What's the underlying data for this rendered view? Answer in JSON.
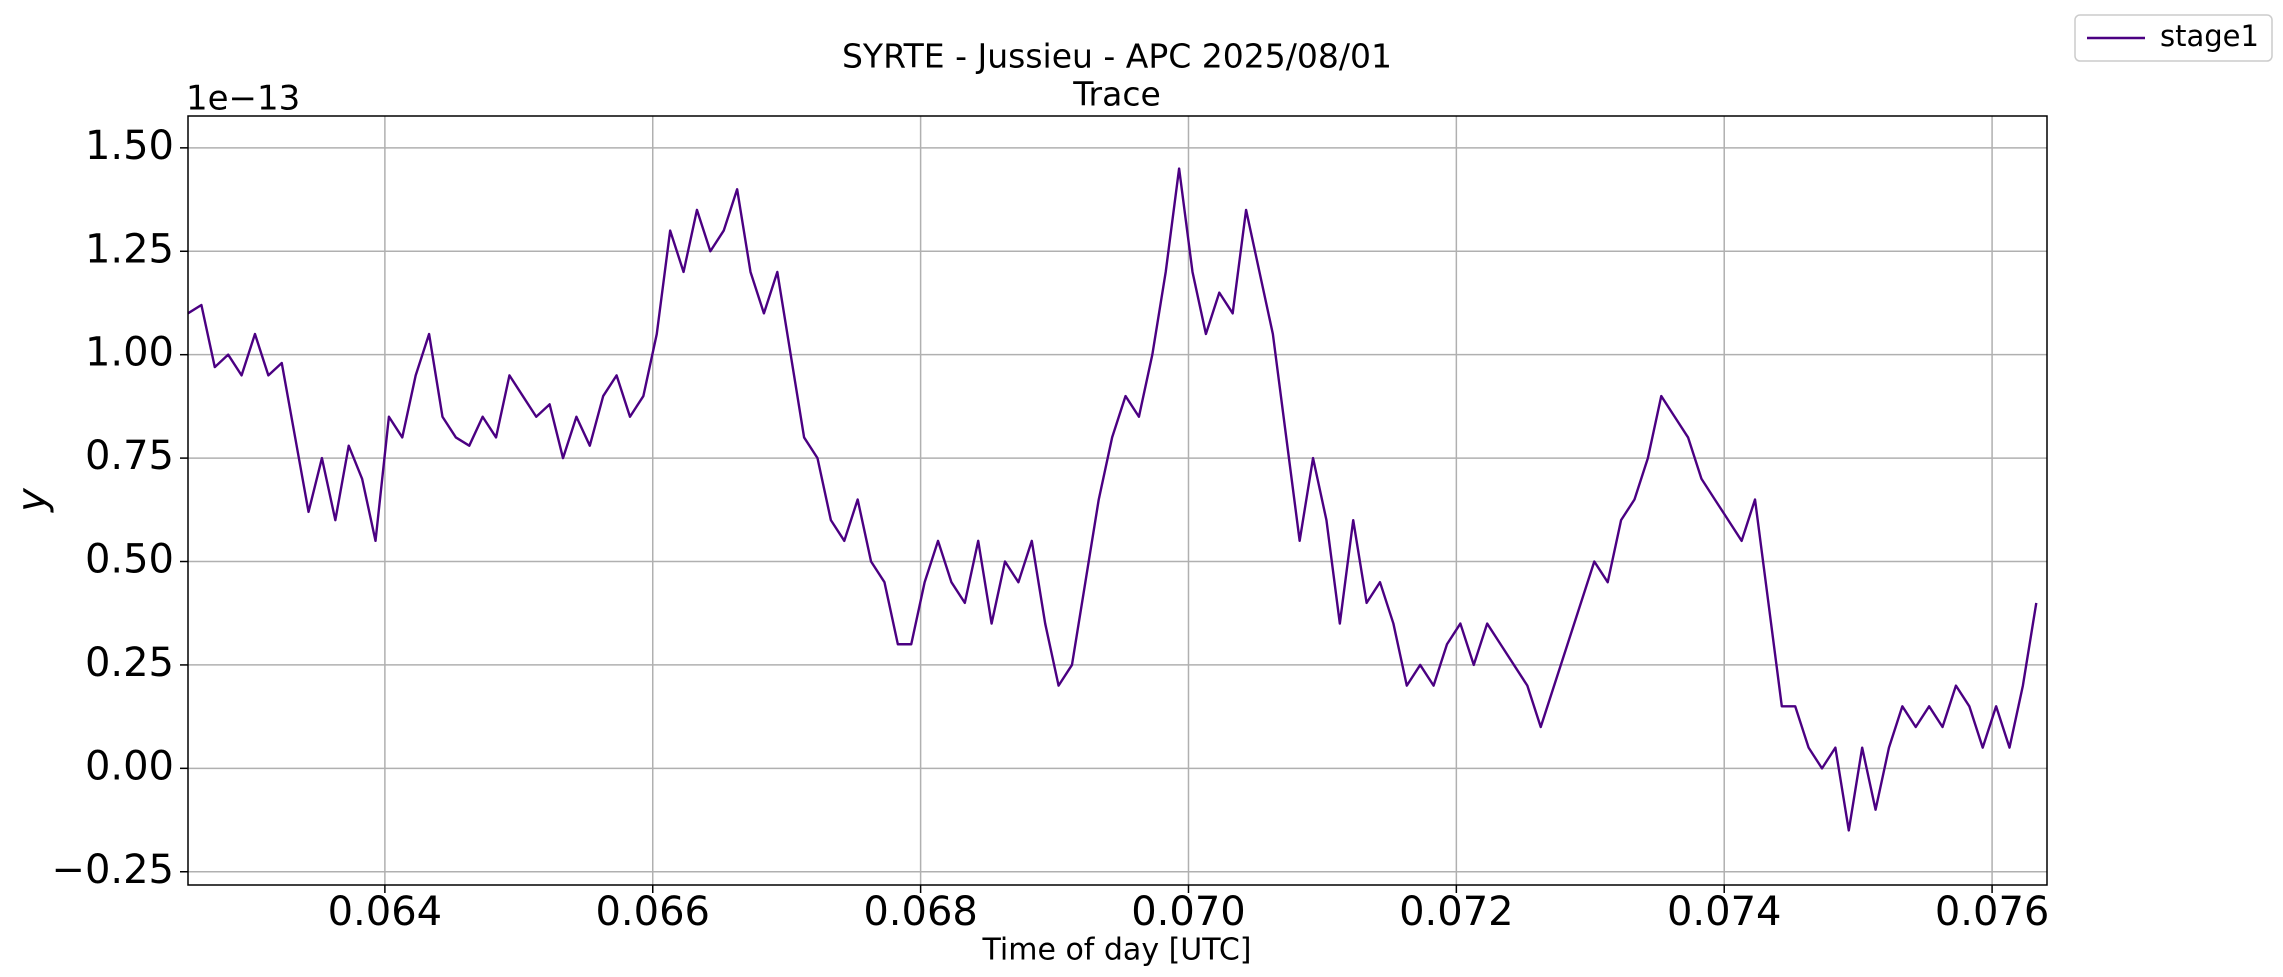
{
  "chart_data": {
    "type": "line",
    "title": "SYRTE - Jussieu - APC 2025/08/01",
    "subtitle": "Trace",
    "y_offset_label": "1e−13",
    "x_label": "Time of day [UTC]",
    "y_label": "y",
    "legend": "upper right",
    "grid": true,
    "xlim": [
      0.06253,
      0.07641
    ],
    "ylim": [
      -0.282,
      1.577
    ],
    "xticks": [
      0.064,
      0.066,
      0.068,
      {
        "value": 0.07,
        "label": "0.070"
      },
      0.072,
      0.074,
      0.076
    ],
    "yticks": [
      {
        "value": -0.25,
        "label": "−0.25"
      },
      {
        "value": 0,
        "label": "0.00"
      },
      0.25,
      {
        "value": 0.5,
        "label": "0.50"
      },
      0.75,
      {
        "value": 1,
        "label": "1.00"
      },
      1.25,
      {
        "value": 1.5,
        "label": "1.50"
      }
    ],
    "x": [
      0.06253,
      0.06263,
      0.06273,
      0.06283,
      0.06293,
      0.06303,
      0.06313,
      0.06323,
      0.06333,
      0.06343,
      0.06353,
      0.06363,
      0.06373,
      0.06383,
      0.06393,
      0.06403,
      0.06413,
      0.06423,
      0.06433,
      0.06443,
      0.06453,
      0.06463,
      0.06473,
      0.06483,
      0.06493,
      0.06503,
      0.06513,
      0.06523,
      0.06533,
      0.06543,
      0.06553,
      0.06563,
      0.06573,
      0.06583,
      0.06593,
      0.06603,
      0.06613,
      0.06623,
      0.06633,
      0.06643,
      0.06653,
      0.06663,
      0.06673,
      0.06683,
      0.06693,
      0.06703,
      0.06713,
      0.06723,
      0.06733,
      0.06743,
      0.06753,
      0.06763,
      0.06773,
      0.06783,
      0.06793,
      0.06803,
      0.06813,
      0.06823,
      0.06833,
      0.06843,
      0.06853,
      0.06863,
      0.06873,
      0.06883,
      0.06893,
      0.06903,
      0.06913,
      0.06923,
      0.06933,
      0.06943,
      0.06953,
      0.06963,
      0.06973,
      0.06983,
      0.06993,
      0.07003,
      0.07013,
      0.07023,
      0.07033,
      0.07043,
      0.07053,
      0.07063,
      0.07073,
      0.07083,
      0.07093,
      0.07103,
      0.07113,
      0.07123,
      0.07133,
      0.07143,
      0.07153,
      0.07163,
      0.07173,
      0.07183,
      0.07193,
      0.07203,
      0.07213,
      0.07223,
      0.07233,
      0.07243,
      0.07253,
      0.07263,
      0.07273,
      0.07283,
      0.07293,
      0.07303,
      0.07313,
      0.07323,
      0.07333,
      0.07343,
      0.07353,
      0.07363,
      0.07373,
      0.07383,
      0.07393,
      0.07403,
      0.07413,
      0.07423,
      0.07433,
      0.07443,
      0.07453,
      0.07463,
      0.07473,
      0.07483,
      0.07493,
      0.07503,
      0.07513,
      0.07523,
      0.07533,
      0.07543,
      0.07553,
      0.07563,
      0.07573,
      0.07583,
      0.07593,
      0.07603,
      0.07613,
      0.07623,
      0.07633
    ],
    "series": [
      {
        "name": "stage1",
        "color": "#4b0082",
        "values": [
          1.1,
          1.12,
          0.97,
          1.0,
          0.95,
          1.05,
          0.95,
          0.98,
          0.8,
          0.62,
          0.75,
          0.6,
          0.78,
          0.7,
          0.55,
          0.85,
          0.8,
          0.95,
          1.05,
          0.85,
          0.8,
          0.78,
          0.85,
          0.8,
          0.95,
          0.9,
          0.85,
          0.88,
          0.75,
          0.85,
          0.78,
          0.9,
          0.95,
          0.85,
          0.9,
          1.05,
          1.3,
          1.2,
          1.35,
          1.25,
          1.3,
          1.4,
          1.2,
          1.1,
          1.2,
          1.0,
          0.8,
          0.75,
          0.6,
          0.55,
          0.65,
          0.5,
          0.45,
          0.3,
          0.3,
          0.45,
          0.55,
          0.45,
          0.4,
          0.55,
          0.35,
          0.5,
          0.45,
          0.55,
          0.35,
          0.2,
          0.25,
          0.45,
          0.65,
          0.8,
          0.9,
          0.85,
          1.0,
          1.2,
          1.45,
          1.2,
          1.05,
          1.15,
          1.1,
          1.35,
          1.2,
          1.05,
          0.8,
          0.55,
          0.75,
          0.6,
          0.35,
          0.6,
          0.4,
          0.45,
          0.35,
          0.2,
          0.25,
          0.2,
          0.3,
          0.35,
          0.25,
          0.35,
          0.3,
          0.25,
          0.2,
          0.1,
          0.2,
          0.3,
          0.4,
          0.5,
          0.45,
          0.6,
          0.65,
          0.75,
          0.9,
          0.85,
          0.8,
          0.7,
          0.65,
          0.6,
          0.55,
          0.65,
          0.4,
          0.15,
          0.15,
          0.05,
          0.0,
          0.05,
          -0.15,
          0.05,
          -0.1,
          0.05,
          0.15,
          0.1,
          0.15,
          0.1,
          0.2,
          0.15,
          0.05,
          0.15,
          0.05,
          0.2,
          0.4
        ]
      }
    ]
  }
}
